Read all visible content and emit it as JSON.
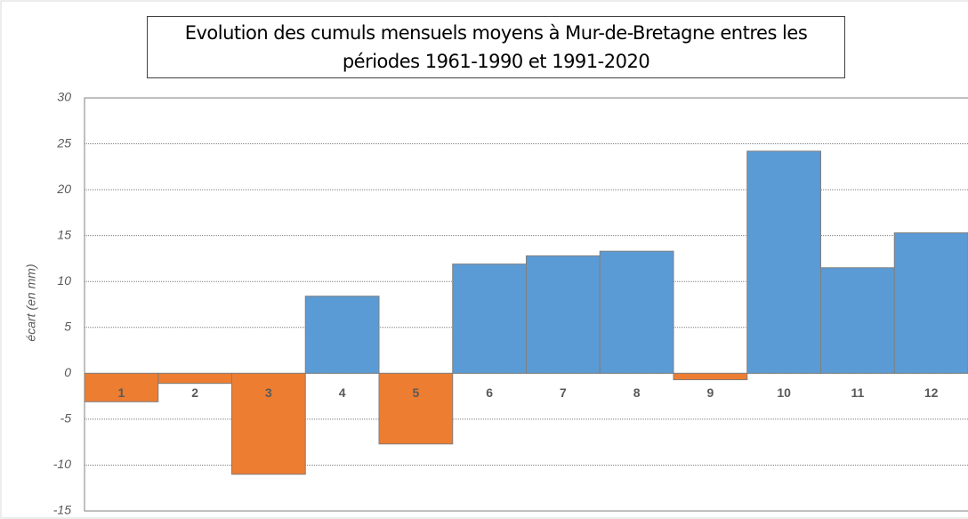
{
  "chart_data": {
    "type": "bar",
    "title": "Evolution des cumuls mensuels moyens à Mur-de-Bretagne entres les périodes 1961-1990 et 1991-2020",
    "ylabel": "écart (en mm)",
    "categories": [
      "1",
      "2",
      "3",
      "4",
      "5",
      "6",
      "7",
      "8",
      "9",
      "10",
      "11",
      "12"
    ],
    "values": [
      -3.1,
      -1.1,
      -11,
      8.4,
      -7.7,
      11.9,
      12.8,
      13.3,
      -0.7,
      24.2,
      11.5,
      15.3
    ],
    "positive_color": "#5b9bd5",
    "negative_color": "#ed7d31",
    "ylim": [
      -15,
      30
    ],
    "yticks": [
      -15,
      -10,
      -5,
      0,
      5,
      10,
      15,
      20,
      25,
      30
    ],
    "grid": true
  }
}
